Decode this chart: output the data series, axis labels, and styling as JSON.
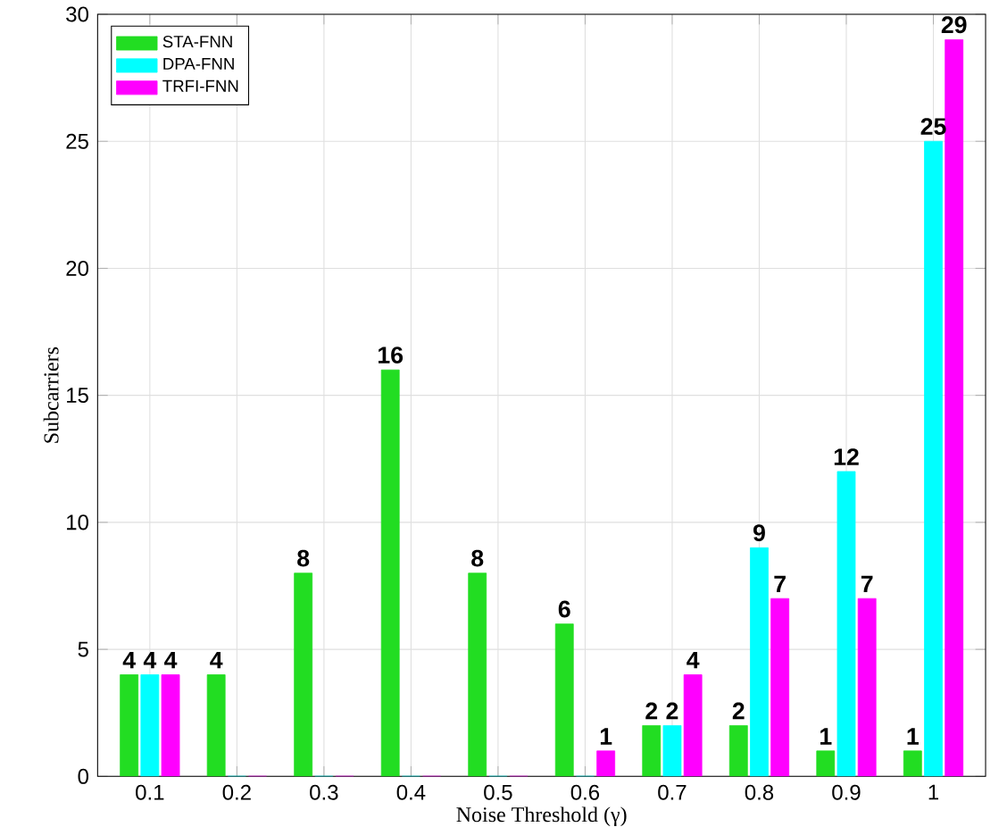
{
  "chart_data": {
    "type": "bar",
    "xlabel": "Noise Threshold (γ)",
    "ylabel": "Subcarriers",
    "categories": [
      "0.1",
      "0.2",
      "0.3",
      "0.4",
      "0.5",
      "0.6",
      "0.7",
      "0.8",
      "0.9",
      "1"
    ],
    "series": [
      {
        "name": "STA-FNN",
        "color": "#22dd22",
        "values": [
          4,
          4,
          8,
          16,
          8,
          6,
          2,
          2,
          1,
          1
        ],
        "value_labels": [
          "4",
          "4",
          "8",
          "16",
          "8",
          "6",
          "2",
          "2",
          "1",
          "1"
        ]
      },
      {
        "name": "DPA-FNN",
        "color": "#00ffff",
        "values": [
          4,
          0,
          0,
          0,
          0,
          0,
          2,
          9,
          12,
          25
        ],
        "value_labels": [
          "4",
          null,
          null,
          null,
          null,
          null,
          "2",
          "9",
          "12",
          "25"
        ]
      },
      {
        "name": "TRFI-FNN",
        "color": "#ff00ff",
        "values": [
          4,
          0,
          0,
          0,
          0,
          1,
          4,
          7,
          7,
          29
        ],
        "value_labels": [
          "4",
          null,
          null,
          null,
          null,
          "1",
          "4",
          "7",
          "7",
          "29"
        ]
      }
    ],
    "ylim": [
      0,
      30
    ],
    "yticks": [
      0,
      5,
      10,
      15,
      20,
      25,
      30
    ],
    "grid": true,
    "legend": "top left"
  }
}
